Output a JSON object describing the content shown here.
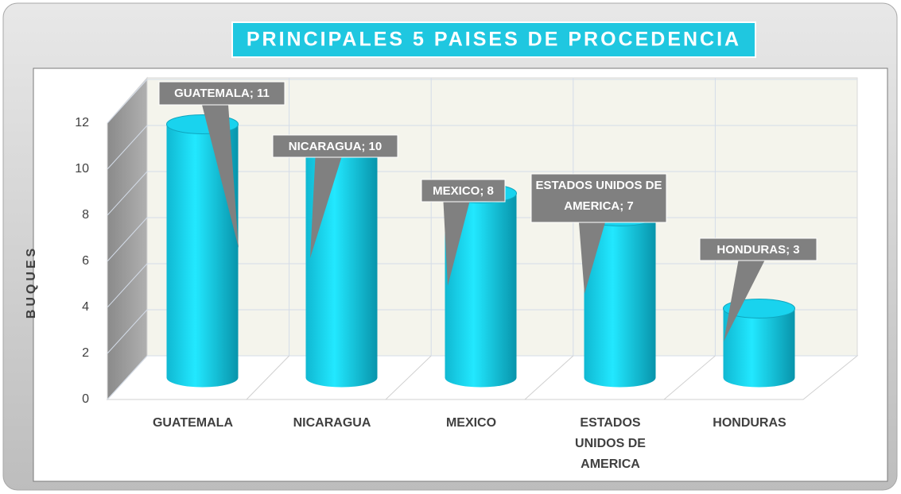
{
  "chart_data": {
    "type": "bar3d",
    "title": "PRINCIPALES 5 PAISES DE PROCEDENCIA",
    "ylabel": "BUQUES",
    "categories": [
      "GUATEMALA",
      "NICARAGUA",
      "MEXICO",
      "ESTADOS UNIDOS DE AMERICA",
      "HONDURAS"
    ],
    "values": [
      11,
      10,
      8,
      7,
      3
    ],
    "value_labels": [
      "GUATEMALA; 11",
      "NICARAGUA; 10",
      "MEXICO; 8",
      "ESTADOS UNIDOS DE AMERICA; 7",
      "HONDURAS; 3"
    ],
    "color": "#19d3ee",
    "ylim": [
      0,
      12
    ],
    "yticks": [
      0,
      2,
      4,
      6,
      8,
      10,
      12
    ],
    "grid": true
  }
}
